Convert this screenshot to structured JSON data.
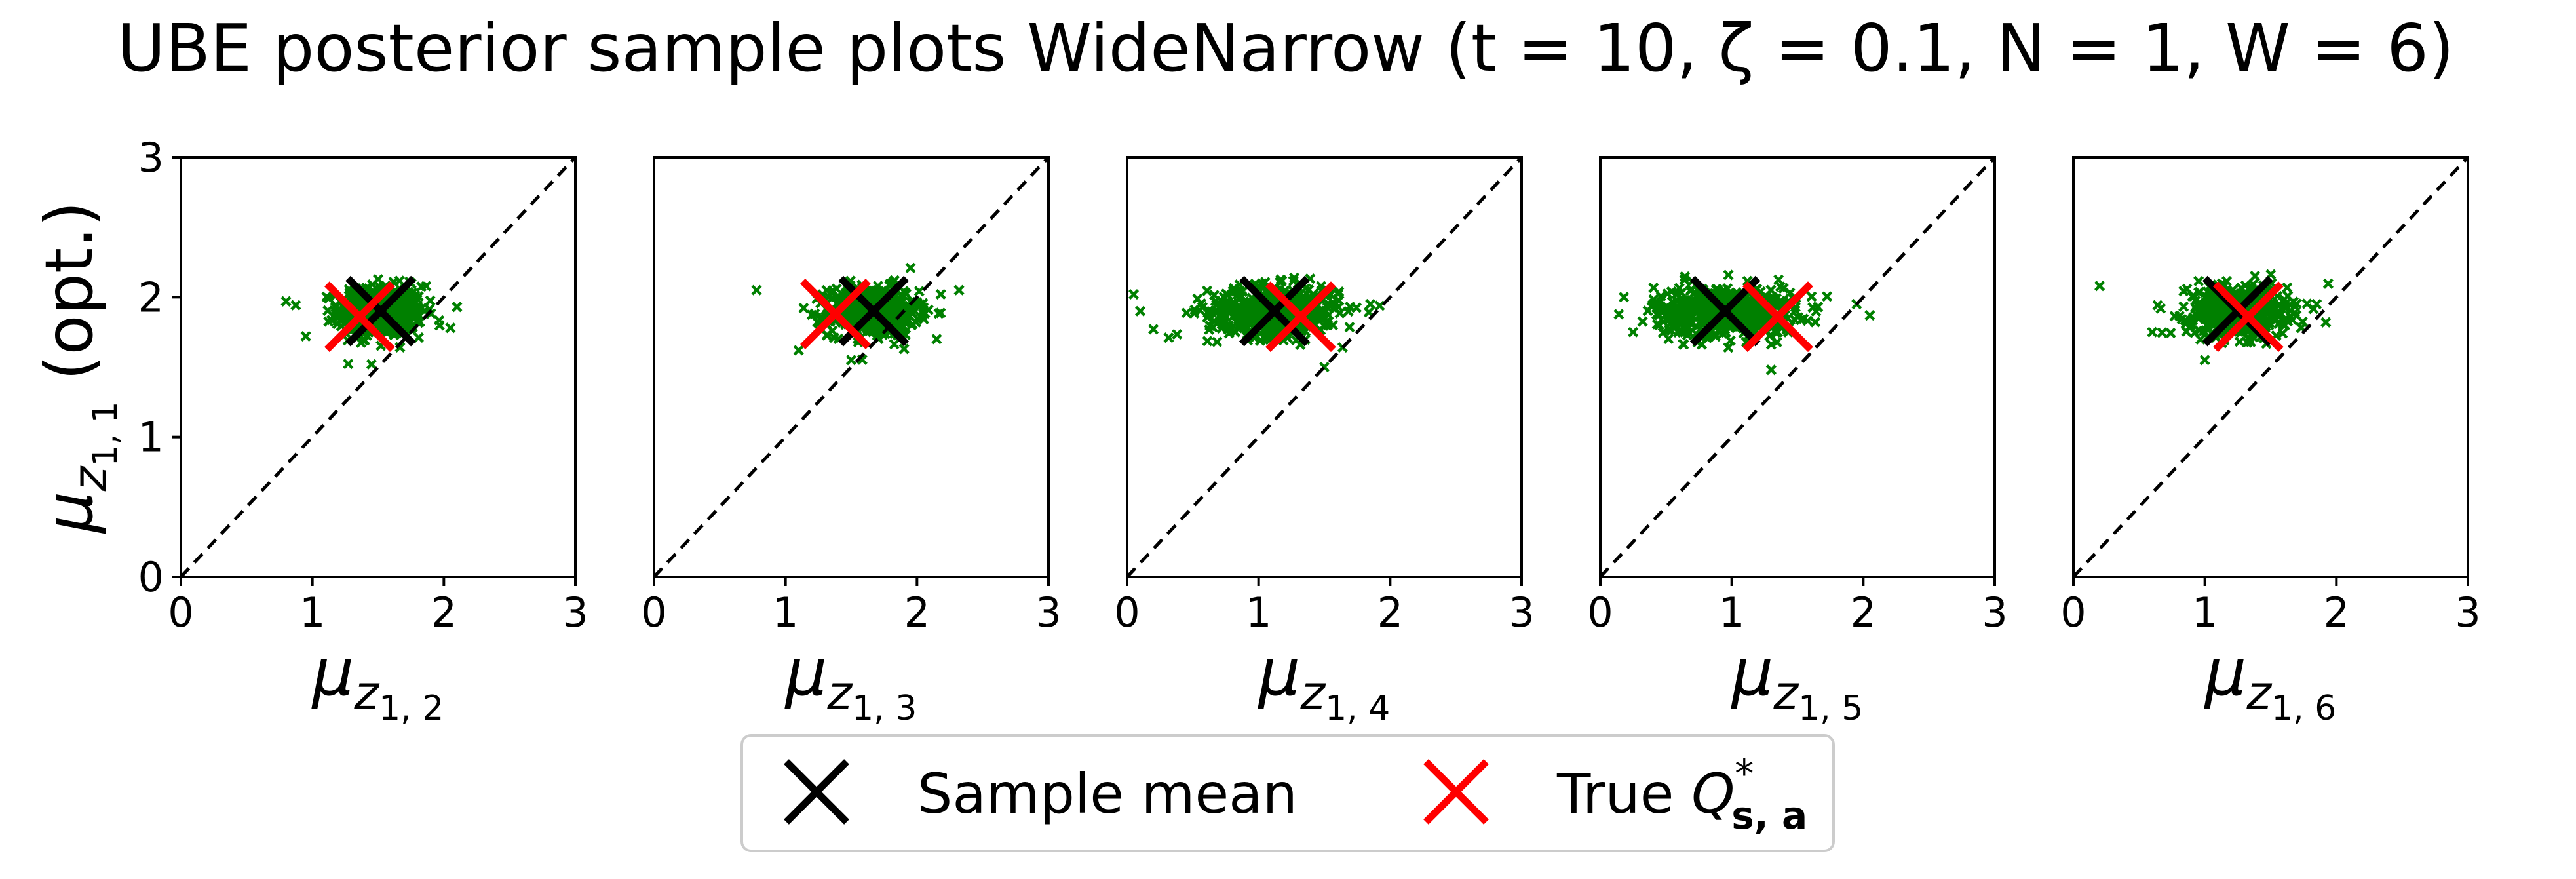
{
  "chart_data": {
    "type": "scatter",
    "title": "UBE posterior sample plots WideNarrow (t = 10, ζ = 0.1, N = 1, W = 6)",
    "ylabel": {
      "symbol": "μ",
      "sub": "z",
      "subsub": "1, 1",
      "suffix": " (opt.)"
    },
    "xlim": [
      0,
      3
    ],
    "ylim": [
      0,
      3
    ],
    "ticks": [
      "0",
      "1",
      "2",
      "3"
    ],
    "reference_line": "y = x (dashed)",
    "grid": false,
    "marker_color": "#008000",
    "mean_color": "#000000",
    "true_color": "#ff0000",
    "legend": {
      "placement": "bottom-center",
      "sample_mean": "Sample mean",
      "true_value_prefix": "True ",
      "true_value_symbol": "Q",
      "true_value_sup": "*",
      "true_value_sub": "s, a"
    },
    "panels": [
      {
        "xlabel": {
          "symbol": "μ",
          "sub": "z",
          "subsub": "1, 2"
        },
        "sample_mean": [
          1.52,
          1.9
        ],
        "true_value": [
          1.36,
          1.86
        ],
        "cloud": {
          "cx": 1.52,
          "cy": 1.9,
          "sx": 0.16,
          "sy": 0.09,
          "outliers": [
            [
              0.8,
              1.97
            ],
            [
              2.05,
              1.78
            ],
            [
              1.45,
              1.52
            ],
            [
              0.95,
              1.72
            ],
            [
              2.1,
              1.93
            ]
          ]
        }
      },
      {
        "xlabel": {
          "symbol": "μ",
          "sub": "z",
          "subsub": "1, 3"
        },
        "sample_mean": [
          1.67,
          1.9
        ],
        "true_value": [
          1.38,
          1.88
        ],
        "cloud": {
          "cx": 1.67,
          "cy": 1.9,
          "sx": 0.17,
          "sy": 0.09,
          "outliers": [
            [
              0.78,
              2.05
            ],
            [
              2.32,
              2.05
            ],
            [
              1.1,
              1.62
            ],
            [
              2.15,
              1.7
            ],
            [
              1.5,
              1.55
            ]
          ]
        }
      },
      {
        "xlabel": {
          "symbol": "μ",
          "sub": "z",
          "subsub": "1, 4"
        },
        "sample_mean": [
          1.12,
          1.9
        ],
        "true_value": [
          1.32,
          1.86
        ],
        "cloud": {
          "cx": 1.12,
          "cy": 1.9,
          "sx": 0.25,
          "sy": 0.09,
          "outliers": [
            [
              0.05,
              2.02
            ],
            [
              0.2,
              1.77
            ],
            [
              1.85,
              1.95
            ],
            [
              0.1,
              1.9
            ],
            [
              1.5,
              1.5
            ]
          ]
        }
      },
      {
        "xlabel": {
          "symbol": "μ",
          "sub": "z",
          "subsub": "1, 5"
        },
        "sample_mean": [
          0.95,
          1.9
        ],
        "true_value": [
          1.35,
          1.86
        ],
        "cloud": {
          "cx": 0.95,
          "cy": 1.9,
          "sx": 0.27,
          "sy": 0.09,
          "outliers": [
            [
              0.25,
              1.75
            ],
            [
              1.95,
              1.95
            ],
            [
              2.05,
              1.87
            ],
            [
              0.18,
              2.0
            ],
            [
              1.3,
              1.48
            ]
          ]
        }
      },
      {
        "xlabel": {
          "symbol": "μ",
          "sub": "z",
          "subsub": "1, 6"
        },
        "sample_mean": [
          1.25,
          1.9
        ],
        "true_value": [
          1.33,
          1.86
        ],
        "cloud": {
          "cx": 1.25,
          "cy": 1.9,
          "sx": 0.19,
          "sy": 0.09,
          "outliers": [
            [
              0.2,
              2.08
            ],
            [
              1.85,
              1.95
            ],
            [
              0.6,
              1.75
            ],
            [
              1.0,
              1.55
            ],
            [
              1.92,
              1.82
            ]
          ]
        }
      }
    ]
  }
}
